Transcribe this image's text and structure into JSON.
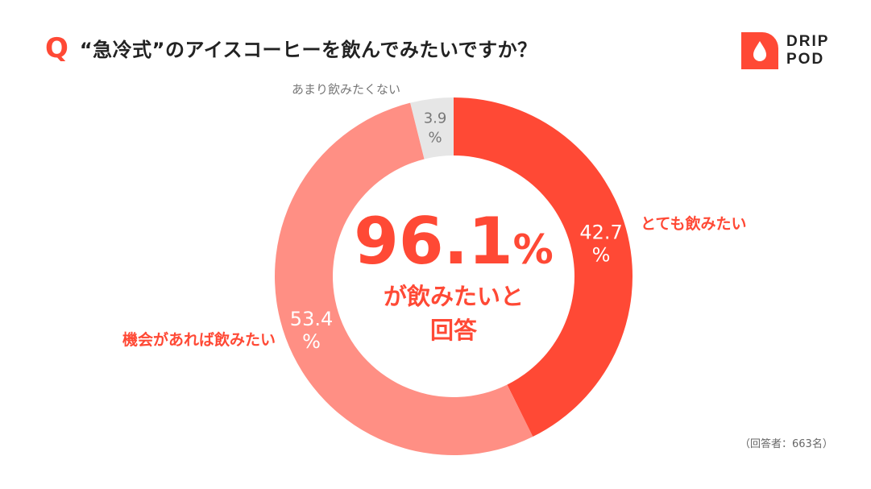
{
  "header": {
    "q_mark": "Q",
    "question": "“急冷式”のアイスコーヒーを飲んでみたいですか？"
  },
  "logo": {
    "line1": "DRIP",
    "line2": "POD"
  },
  "center": {
    "value": "96.1",
    "unit": "%",
    "line1": "が飲みたいと",
    "line2": "回答"
  },
  "footnote": "（回答者：663名）",
  "colors": {
    "accent": "#ff4935",
    "secondary": "#ff8f84",
    "neutral": "#e6e6e6",
    "neutral_text": "#777777",
    "white": "#ffffff"
  },
  "chart_data": {
    "type": "pie",
    "donut": true,
    "unit": "%",
    "slices": [
      {
        "label": "とても飲みたい",
        "value": 42.7,
        "color": "#ff4935",
        "label_color": "#ff4935",
        "value_color": "#ffffff"
      },
      {
        "label": "機会があれば飲みたい",
        "value": 53.4,
        "color": "#ff8f84",
        "label_color": "#ff4935",
        "value_color": "#ffffff"
      },
      {
        "label": "あまり飲みたくない",
        "value": 3.9,
        "color": "#e6e6e6",
        "label_color": "#777777",
        "value_color": "#777777"
      }
    ]
  }
}
